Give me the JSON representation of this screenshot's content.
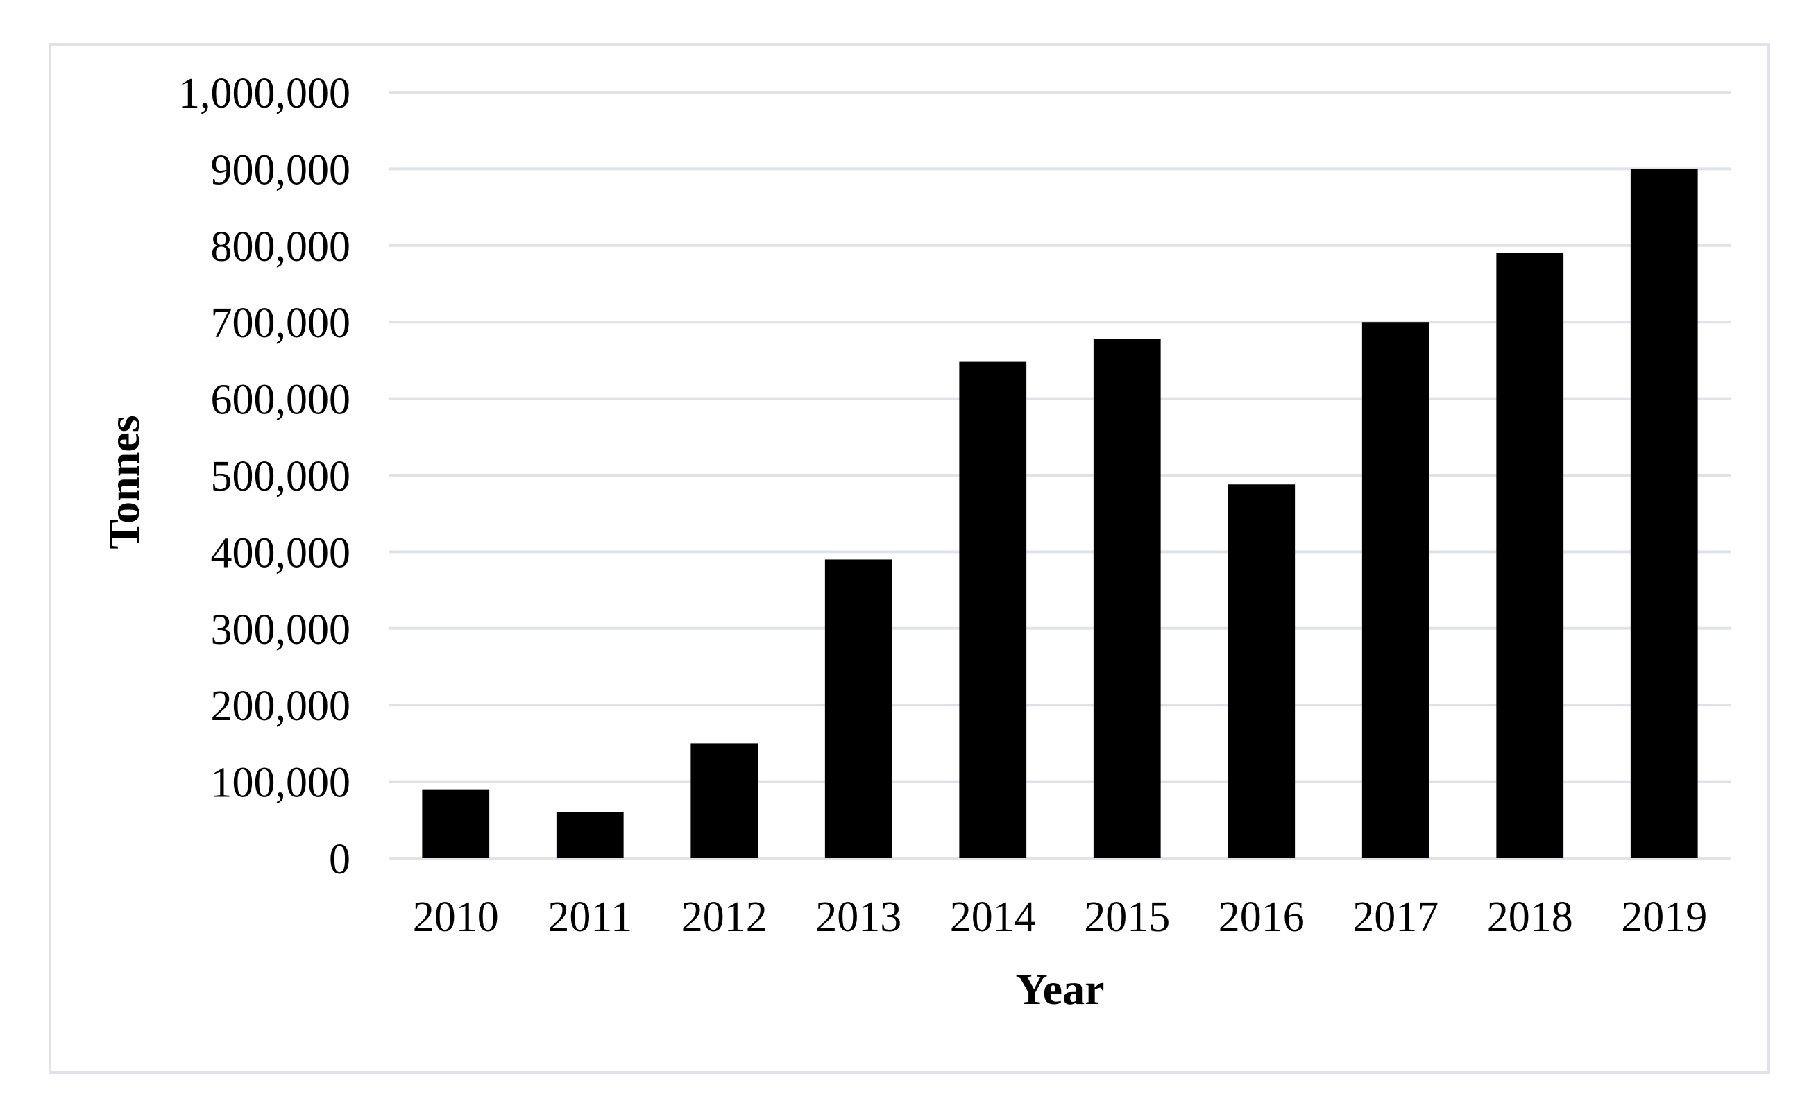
{
  "chart_data": {
    "type": "bar",
    "title": "",
    "xlabel": "Year",
    "ylabel": "Tonnes",
    "categories": [
      "2010",
      "2011",
      "2012",
      "2013",
      "2014",
      "2015",
      "2016",
      "2017",
      "2018",
      "2019"
    ],
    "values": [
      90000,
      60000,
      150000,
      390000,
      648000,
      678000,
      488000,
      700000,
      790000,
      900000
    ],
    "ylim": [
      0,
      1000000
    ],
    "yticks": [
      0,
      100000,
      200000,
      300000,
      400000,
      500000,
      600000,
      700000,
      800000,
      900000,
      1000000
    ],
    "ytick_labels": [
      "0",
      "100,000",
      "200,000",
      "300,000",
      "400,000",
      "500,000",
      "600,000",
      "700,000",
      "800,000",
      "900,000",
      "1,000,000"
    ],
    "grid": true,
    "legend": "none",
    "bar_color": "#000000",
    "grid_color": "#dfe3e8"
  }
}
